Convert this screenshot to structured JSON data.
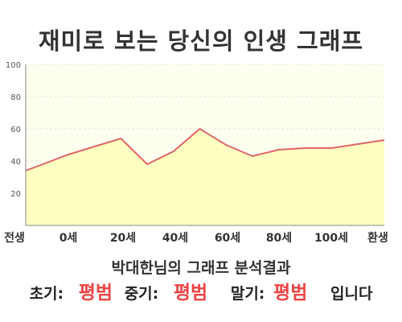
{
  "title": "재미로 보는 당신의 인생 그래프",
  "result_title": "박대한님의 그래프 분석결과",
  "verdict": {
    "early_label": "초기:",
    "early_value": "평범",
    "mid_label": "중기:",
    "mid_value": "평범",
    "late_label": "말기:",
    "late_value": "평범",
    "suffix": "입니다"
  },
  "colors": {
    "line": "#e06666",
    "fill": "#ffffc2",
    "plot_bg": "#fffff0",
    "axis": "#888888",
    "value_text": "#ee4444"
  },
  "chart_data": {
    "type": "area",
    "x_tick_labels": [
      "전생",
      "0세",
      "20세",
      "40세",
      "60세",
      "80세",
      "100세",
      "환생"
    ],
    "y_ticks": [
      100,
      80,
      60,
      40,
      20
    ],
    "ylim": [
      0,
      100
    ],
    "grid": true,
    "points": [
      {
        "x": -5,
        "y": 34
      },
      {
        "x": 0,
        "y": 44
      },
      {
        "x": 20,
        "y": 54
      },
      {
        "x": 30,
        "y": 38
      },
      {
        "x": 40,
        "y": 46
      },
      {
        "x": 50,
        "y": 60
      },
      {
        "x": 60,
        "y": 50
      },
      {
        "x": 70,
        "y": 43
      },
      {
        "x": 80,
        "y": 47
      },
      {
        "x": 90,
        "y": 48
      },
      {
        "x": 100,
        "y": 48
      },
      {
        "x": 120,
        "y": 53
      }
    ]
  }
}
